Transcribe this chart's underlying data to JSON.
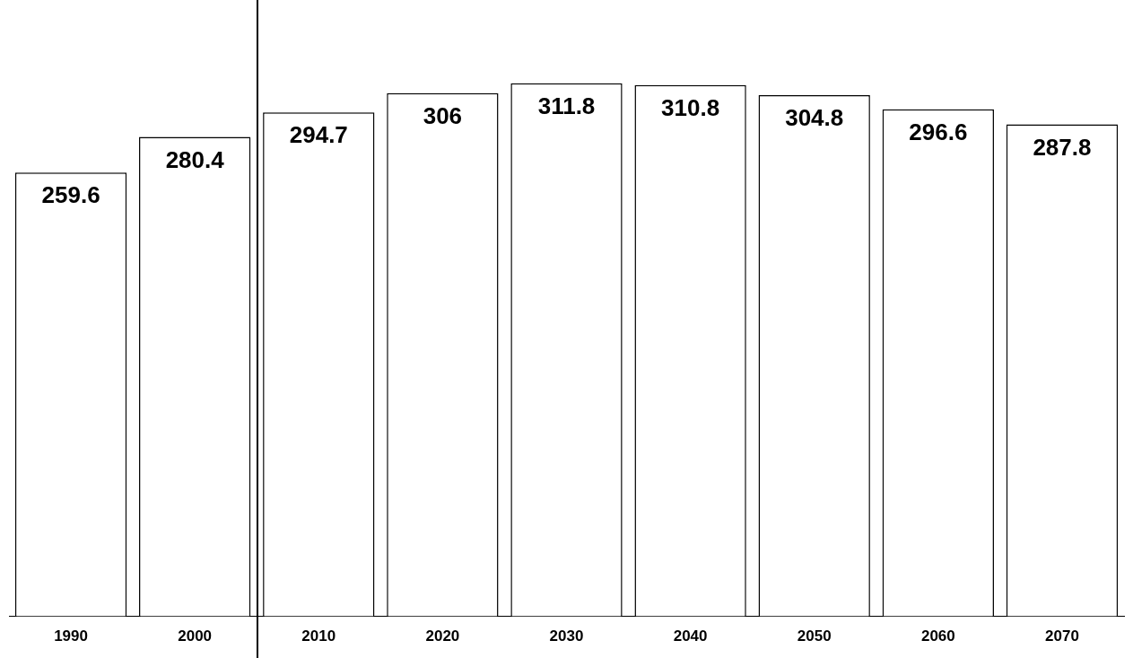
{
  "chart_data": {
    "type": "bar",
    "categories": [
      "1990",
      "2000",
      "2010",
      "2020",
      "2030",
      "2040",
      "2050",
      "2060",
      "2070"
    ],
    "values": [
      259.6,
      280.4,
      294.7,
      306,
      311.8,
      310.8,
      304.8,
      296.6,
      287.8
    ],
    "color": "#ffffff",
    "data_labels": true,
    "tick_labels": "x",
    "grid": false,
    "legend": false
  }
}
